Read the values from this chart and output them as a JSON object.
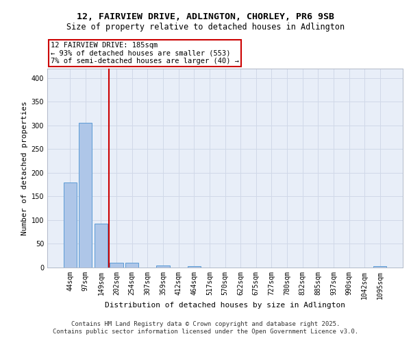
{
  "title_line1": "12, FAIRVIEW DRIVE, ADLINGTON, CHORLEY, PR6 9SB",
  "title_line2": "Size of property relative to detached houses in Adlington",
  "xlabel": "Distribution of detached houses by size in Adlington",
  "ylabel": "Number of detached properties",
  "bar_labels": [
    "44sqm",
    "97sqm",
    "149sqm",
    "202sqm",
    "254sqm",
    "307sqm",
    "359sqm",
    "412sqm",
    "464sqm",
    "517sqm",
    "570sqm",
    "622sqm",
    "675sqm",
    "727sqm",
    "780sqm",
    "832sqm",
    "885sqm",
    "937sqm",
    "990sqm",
    "1042sqm",
    "1095sqm"
  ],
  "bar_values": [
    180,
    305,
    93,
    10,
    10,
    0,
    4,
    0,
    3,
    0,
    0,
    0,
    0,
    0,
    0,
    0,
    0,
    0,
    0,
    0,
    3
  ],
  "bar_color": "#aec6e8",
  "bar_edge_color": "#5b9bd5",
  "vline_x": 2.5,
  "vline_color": "#cc0000",
  "annotation_text": "12 FAIRVIEW DRIVE: 185sqm\n← 93% of detached houses are smaller (553)\n7% of semi-detached houses are larger (40) →",
  "annotation_box_color": "#ffffff",
  "annotation_box_edge": "#cc0000",
  "ylim": [
    0,
    420
  ],
  "yticks": [
    0,
    50,
    100,
    150,
    200,
    250,
    300,
    350,
    400
  ],
  "grid_color": "#d0d8e8",
  "background_color": "#e8eef8",
  "footer_line1": "Contains HM Land Registry data © Crown copyright and database right 2025.",
  "footer_line2": "Contains public sector information licensed under the Open Government Licence v3.0.",
  "title_fontsize": 9.5,
  "subtitle_fontsize": 8.5,
  "axis_label_fontsize": 8,
  "tick_fontsize": 7,
  "annotation_fontsize": 7.5,
  "footer_fontsize": 6.5
}
